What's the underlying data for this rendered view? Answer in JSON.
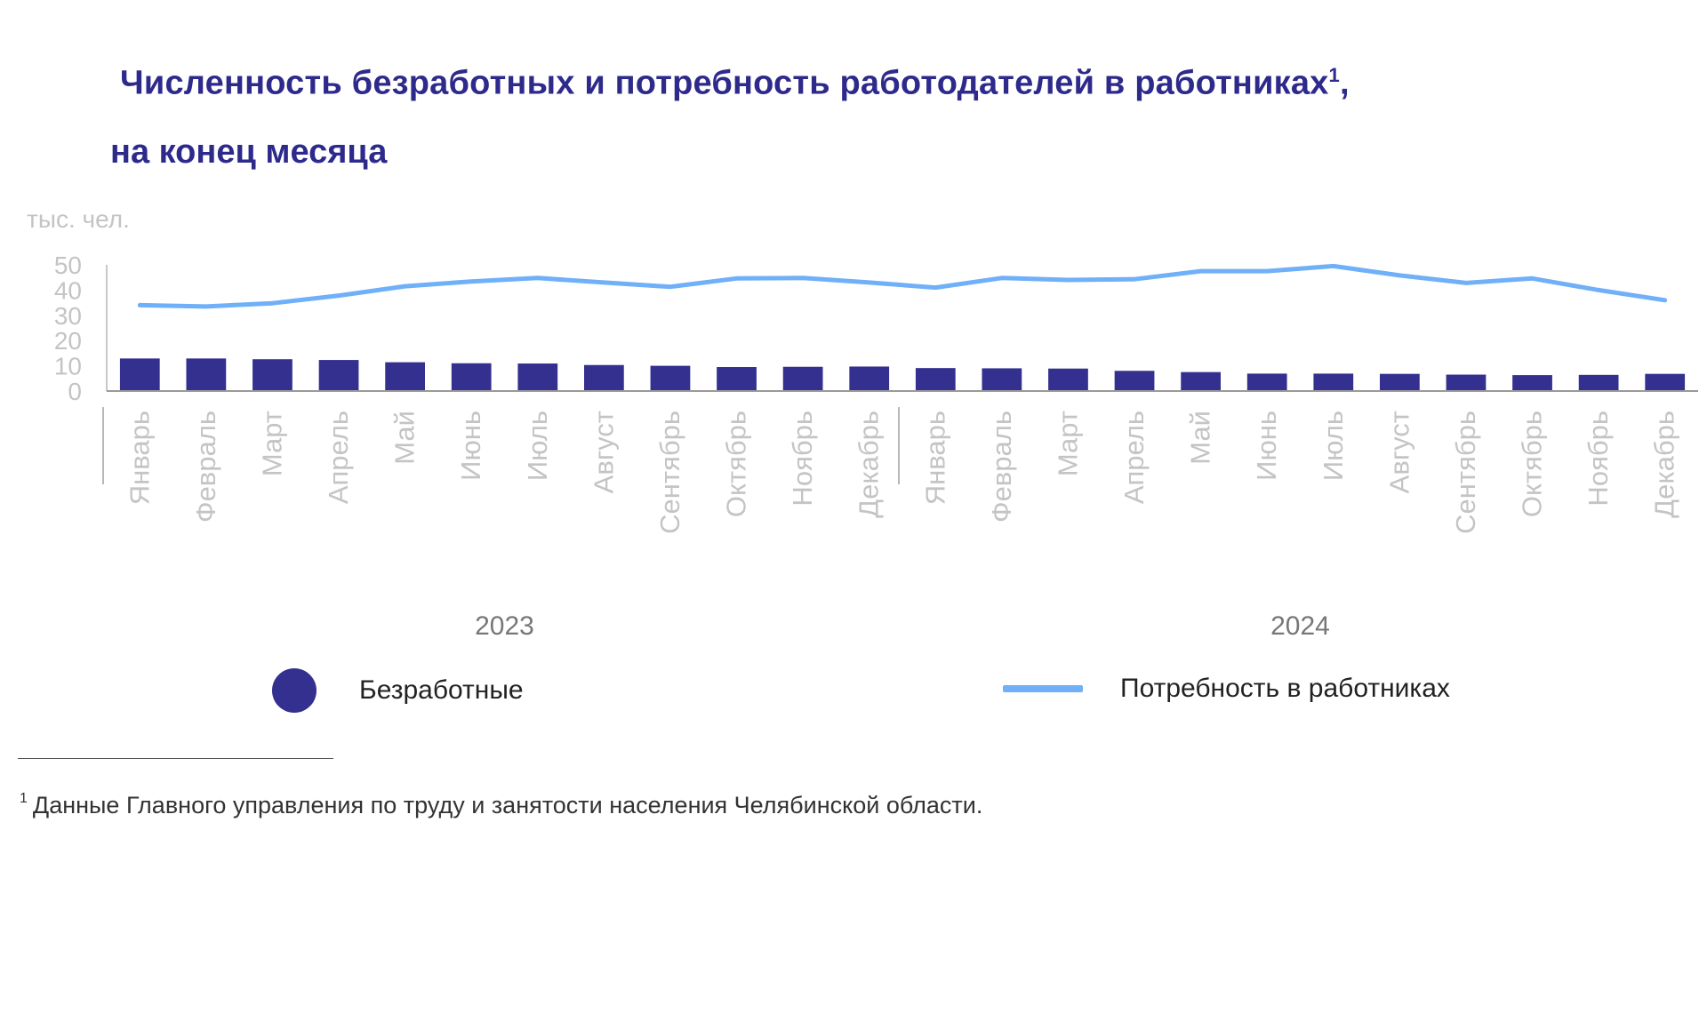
{
  "title": {
    "line1": "Численность безработных и потребность работодателей в работниках",
    "sup": "1",
    "comma": ",",
    "line2": "на конец месяца"
  },
  "colors": {
    "title": "#2e2a8c",
    "bars": "#33308f",
    "line": "#6fb0f8",
    "axis_text": "#c4c4c4",
    "axis_line": "#9a9a9a"
  },
  "chart_data": {
    "type": "bar+line",
    "ylabel": "тыс. чел.",
    "ylim": [
      0,
      50
    ],
    "yticks": [
      0,
      10,
      20,
      30,
      40,
      50
    ],
    "categories": [
      "Январь",
      "Февраль",
      "Март",
      "Апрель",
      "Май",
      "Июнь",
      "Июль",
      "Август",
      "Сентябрь",
      "Октябрь",
      "Ноябрь",
      "Декабрь",
      "Январь",
      "Февраль",
      "Март",
      "Апрель",
      "Май",
      "Июнь",
      "Июль",
      "Август",
      "Сентябрь",
      "Октябрь",
      "Ноябрь",
      "Декабрь"
    ],
    "groups": [
      {
        "label": "2023",
        "start": 0,
        "end": 11
      },
      {
        "label": "2024",
        "start": 12,
        "end": 23
      }
    ],
    "series": [
      {
        "name": "Безработные",
        "type": "bar",
        "values": [
          12.9,
          12.9,
          12.6,
          12.3,
          11.4,
          11.0,
          10.9,
          10.3,
          10.0,
          9.5,
          9.6,
          9.7,
          9.1,
          9.0,
          8.9,
          8.0,
          7.5,
          6.9,
          6.9,
          6.8,
          6.5,
          6.3,
          6.4,
          6.8
        ]
      },
      {
        "name": "Потребность в работниках",
        "type": "line",
        "values": [
          34.0,
          33.5,
          34.8,
          37.8,
          41.5,
          43.4,
          44.8,
          43.0,
          41.3,
          44.6,
          44.8,
          43.0,
          41.0,
          44.8,
          44.0,
          44.3,
          47.5,
          47.5,
          49.5,
          45.8,
          42.8,
          44.6,
          40.0,
          36.0
        ]
      }
    ]
  },
  "legend": {
    "unemployed": "Безработные",
    "demand": "Потребность в работниках"
  },
  "footnote": {
    "sup": "1",
    "text": "Данные Главного управления по труду и занятости населения Челябинской области."
  }
}
